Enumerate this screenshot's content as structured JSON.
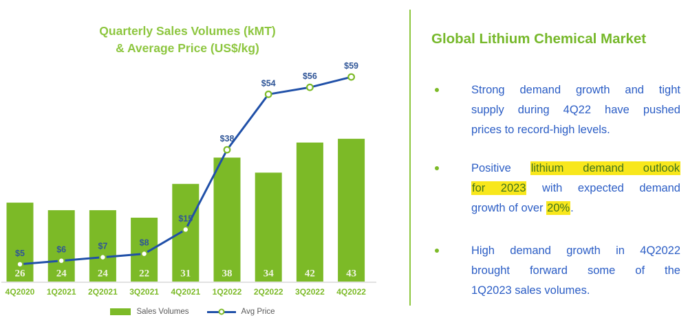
{
  "chart": {
    "title_line1": "Quarterly Sales Volumes (kMT)",
    "title_line2": "& Average Price (US$/kg)",
    "legend": {
      "sales": "Sales Volumes",
      "price": "Avg Price"
    }
  },
  "chart_data": {
    "type": "bar+line combo",
    "title": "Quarterly Sales Volumes (kMT) & Average Price (US$/kg)",
    "categories": [
      "4Q2020",
      "1Q2021",
      "2Q2021",
      "3Q2021",
      "4Q2021",
      "1Q2022",
      "2Q2022",
      "3Q2022",
      "4Q2022"
    ],
    "series": [
      {
        "name": "Sales Volumes",
        "type": "bar",
        "unit": "kMT",
        "values": [
          26,
          24,
          24,
          22,
          31,
          38,
          34,
          42,
          43
        ]
      },
      {
        "name": "Avg Price",
        "type": "line",
        "unit": "US$/kg",
        "values": [
          5,
          6,
          7,
          8,
          15,
          38,
          54,
          56,
          59
        ],
        "labels": [
          "$5",
          "$6",
          "$7",
          "$8",
          "$15",
          "$38",
          "$54",
          "$56",
          "$59"
        ]
      }
    ],
    "legend_position": "bottom",
    "grid": false,
    "y_axes_visible": false,
    "volume_axis_implied_range": [
      5,
      45
    ],
    "price_axis_implied_range": [
      0,
      80
    ]
  },
  "panel": {
    "heading": "Global Lithium Chemical Market",
    "bullets": [
      {
        "lines": [
          [
            {
              "t": "Strong demand growth and tight"
            }
          ],
          [
            {
              "t": "supply during 4Q22 have pushed"
            }
          ],
          [
            {
              "t": "prices to record-high levels."
            }
          ]
        ]
      },
      {
        "lines": [
          [
            {
              "t": "Positive "
            },
            {
              "t": "lithium demand outlook",
              "h": true
            }
          ],
          [
            {
              "t": "for 2023",
              "h": true
            },
            {
              "t": " with expected demand"
            }
          ],
          [
            {
              "t": "growth of over "
            },
            {
              "t": "20%",
              "h": true
            },
            {
              "t": "."
            }
          ]
        ]
      },
      {
        "lines": [
          [
            {
              "t": "High demand growth in 4Q2022"
            }
          ],
          [
            {
              "t": "brought forward some of the"
            }
          ],
          [
            {
              "t": "1Q2023 sales volumes."
            }
          ]
        ]
      }
    ]
  },
  "colors": {
    "bar_green": "#7CBA27",
    "title_green": "#8DC63F",
    "heading_green": "#76B82A",
    "line_blue": "#2050A8",
    "price_label_blue": "#2F5597",
    "body_blue": "#2B5DC5",
    "highlight_yellow": "#F8E71C",
    "highlight_text_green": "#3F731F",
    "bar_value_label": "#F1F5E4",
    "xaxis_label_green": "#7CBA27",
    "legend_gray": "#595959",
    "axis_line_gray": "#D9D9D9"
  }
}
